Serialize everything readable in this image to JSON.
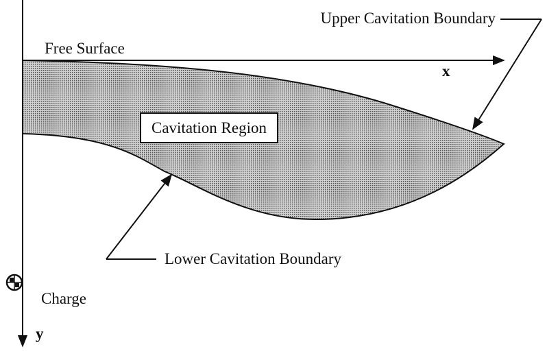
{
  "labels": {
    "upper_boundary": "Upper Cavitation Boundary",
    "free_surface": "Free Surface",
    "x_axis": "x",
    "region": "Cavitation Region",
    "lower_boundary": "Lower Cavitation Boundary",
    "charge": "Charge",
    "y_axis": "y"
  }
}
